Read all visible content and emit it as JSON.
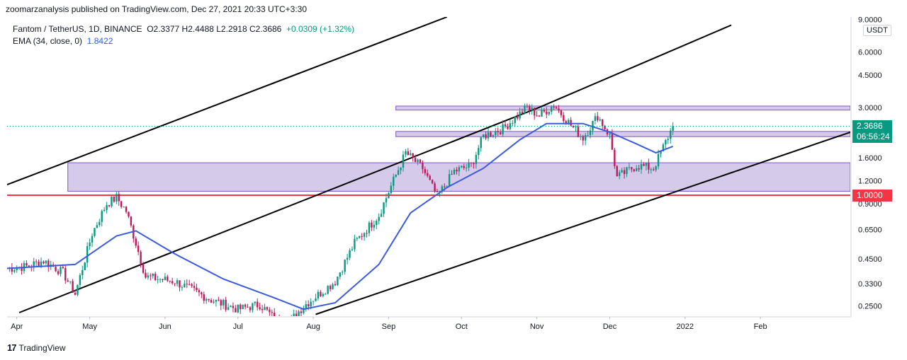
{
  "header": {
    "published": "zoomarzanalysis published on TradingView.com, Dec 27, 2021 20:33 UTC+3:30"
  },
  "legend": {
    "symbol": "Fantom / TetherUS, 1D, BINANCE",
    "ohlc": "O2.3377  H2.4488  L2.2918  C2.3686",
    "change": "+0.0309 (+1.32%)",
    "ema_label": "EMA (34, close, 0)",
    "ema_value": "1.8422"
  },
  "axis": {
    "currency": "USDT",
    "last_price": "2.3686",
    "countdown": "06:56:24",
    "level_price": "1.0000"
  },
  "footer": {
    "brand": "TradingView"
  },
  "colors": {
    "up": "#089981",
    "down": "#c2185b",
    "ema": "#3b5bdb",
    "zone": "#d1c4e9",
    "zone_border": "#7e57c2",
    "level": "#f23645"
  },
  "chart_data": {
    "type": "candlestick",
    "symbol": "FTMUSDT",
    "interval": "1D",
    "y_scale": "log",
    "ylim": [
      0.22,
      9.3
    ],
    "x_range": [
      "2021-03-28",
      "2022-03-10"
    ],
    "y_ticks": [
      "9.0000",
      "6.0000",
      "4.5000",
      "3.0000",
      "1.6000",
      "1.2000",
      "0.9000",
      "0.6500",
      "0.4500",
      "0.3300",
      "0.2500"
    ],
    "x_ticks": [
      {
        "label": "Apr",
        "date": "2021-04-01"
      },
      {
        "label": "May",
        "date": "2021-05-01"
      },
      {
        "label": "Jun",
        "date": "2021-06-01"
      },
      {
        "label": "Jul",
        "date": "2021-07-01"
      },
      {
        "label": "Aug",
        "date": "2021-08-01"
      },
      {
        "label": "Sep",
        "date": "2021-09-01"
      },
      {
        "label": "Oct",
        "date": "2021-10-01"
      },
      {
        "label": "Nov",
        "date": "2021-11-01"
      },
      {
        "label": "Dec",
        "date": "2021-12-01"
      },
      {
        "label": "2022",
        "date": "2022-01-01"
      },
      {
        "label": "Feb",
        "date": "2022-02-01"
      }
    ],
    "price_path": [
      [
        "2021-03-28",
        0.4
      ],
      [
        "2021-04-05",
        0.41
      ],
      [
        "2021-04-12",
        0.44
      ],
      [
        "2021-04-20",
        0.38
      ],
      [
        "2021-04-25",
        0.29
      ],
      [
        "2021-05-02",
        0.62
      ],
      [
        "2021-05-08",
        0.9
      ],
      [
        "2021-05-12",
        0.97
      ],
      [
        "2021-05-16",
        0.82
      ],
      [
        "2021-05-20",
        0.55
      ],
      [
        "2021-05-24",
        0.36
      ],
      [
        "2021-06-05",
        0.34
      ],
      [
        "2021-06-20",
        0.27
      ],
      [
        "2021-07-01",
        0.24
      ],
      [
        "2021-07-10",
        0.255
      ],
      [
        "2021-07-20",
        0.19
      ],
      [
        "2021-07-28",
        0.25
      ],
      [
        "2021-08-10",
        0.34
      ],
      [
        "2021-08-18",
        0.55
      ],
      [
        "2021-08-28",
        0.78
      ],
      [
        "2021-09-02",
        1.12
      ],
      [
        "2021-09-08",
        1.7
      ],
      [
        "2021-09-15",
        1.4
      ],
      [
        "2021-09-21",
        0.98
      ],
      [
        "2021-09-28",
        1.35
      ],
      [
        "2021-10-05",
        1.45
      ],
      [
        "2021-10-10",
        2.1
      ],
      [
        "2021-10-18",
        2.3
      ],
      [
        "2021-10-28",
        3.0
      ],
      [
        "2021-11-02",
        2.7
      ],
      [
        "2021-11-08",
        3.1
      ],
      [
        "2021-11-15",
        2.4
      ],
      [
        "2021-11-20",
        2.05
      ],
      [
        "2021-11-26",
        2.7
      ],
      [
        "2021-12-01",
        2.1
      ],
      [
        "2021-12-04",
        1.25
      ],
      [
        "2021-12-12",
        1.45
      ],
      [
        "2021-12-19",
        1.4
      ],
      [
        "2021-12-27",
        2.37
      ]
    ],
    "ema": {
      "label": "EMA (34, close, 0)",
      "points": [
        [
          "2021-03-28",
          0.4
        ],
        [
          "2021-04-25",
          0.42
        ],
        [
          "2021-05-12",
          0.6
        ],
        [
          "2021-05-20",
          0.64
        ],
        [
          "2021-06-05",
          0.48
        ],
        [
          "2021-06-25",
          0.35
        ],
        [
          "2021-07-15",
          0.28
        ],
        [
          "2021-07-28",
          0.24
        ],
        [
          "2021-08-10",
          0.26
        ],
        [
          "2021-08-28",
          0.42
        ],
        [
          "2021-09-10",
          0.8
        ],
        [
          "2021-09-25",
          1.1
        ],
        [
          "2021-10-10",
          1.4
        ],
        [
          "2021-10-25",
          2.0
        ],
        [
          "2021-11-05",
          2.45
        ],
        [
          "2021-11-20",
          2.45
        ],
        [
          "2021-12-01",
          2.2
        ],
        [
          "2021-12-12",
          1.9
        ],
        [
          "2021-12-20",
          1.7
        ],
        [
          "2021-12-27",
          1.8422
        ]
      ]
    },
    "zones": [
      {
        "from": "2021-09-04",
        "to": "2022-03-10",
        "low": 2.9,
        "high": 3.05
      },
      {
        "from": "2021-09-04",
        "to": "2022-03-10",
        "low": 2.08,
        "high": 2.22
      },
      {
        "from": "2021-04-22",
        "to": "2022-03-10",
        "low": 1.05,
        "high": 1.5
      }
    ],
    "horizontal_lines": [
      {
        "price": 1.0,
        "label": "1.0000"
      }
    ],
    "trend_lines": [
      [
        [
          "2021-03-28",
          1.14
        ],
        [
          "2021-09-25",
          9.3
        ]
      ],
      [
        [
          "2021-04-02",
          0.23
        ],
        [
          "2021-11-02",
          3.0
        ],
        [
          "2022-01-20",
          8.4
        ]
      ],
      [
        [
          "2021-08-02",
          0.225
        ],
        [
          "2022-03-10",
          2.2
        ]
      ]
    ]
  }
}
